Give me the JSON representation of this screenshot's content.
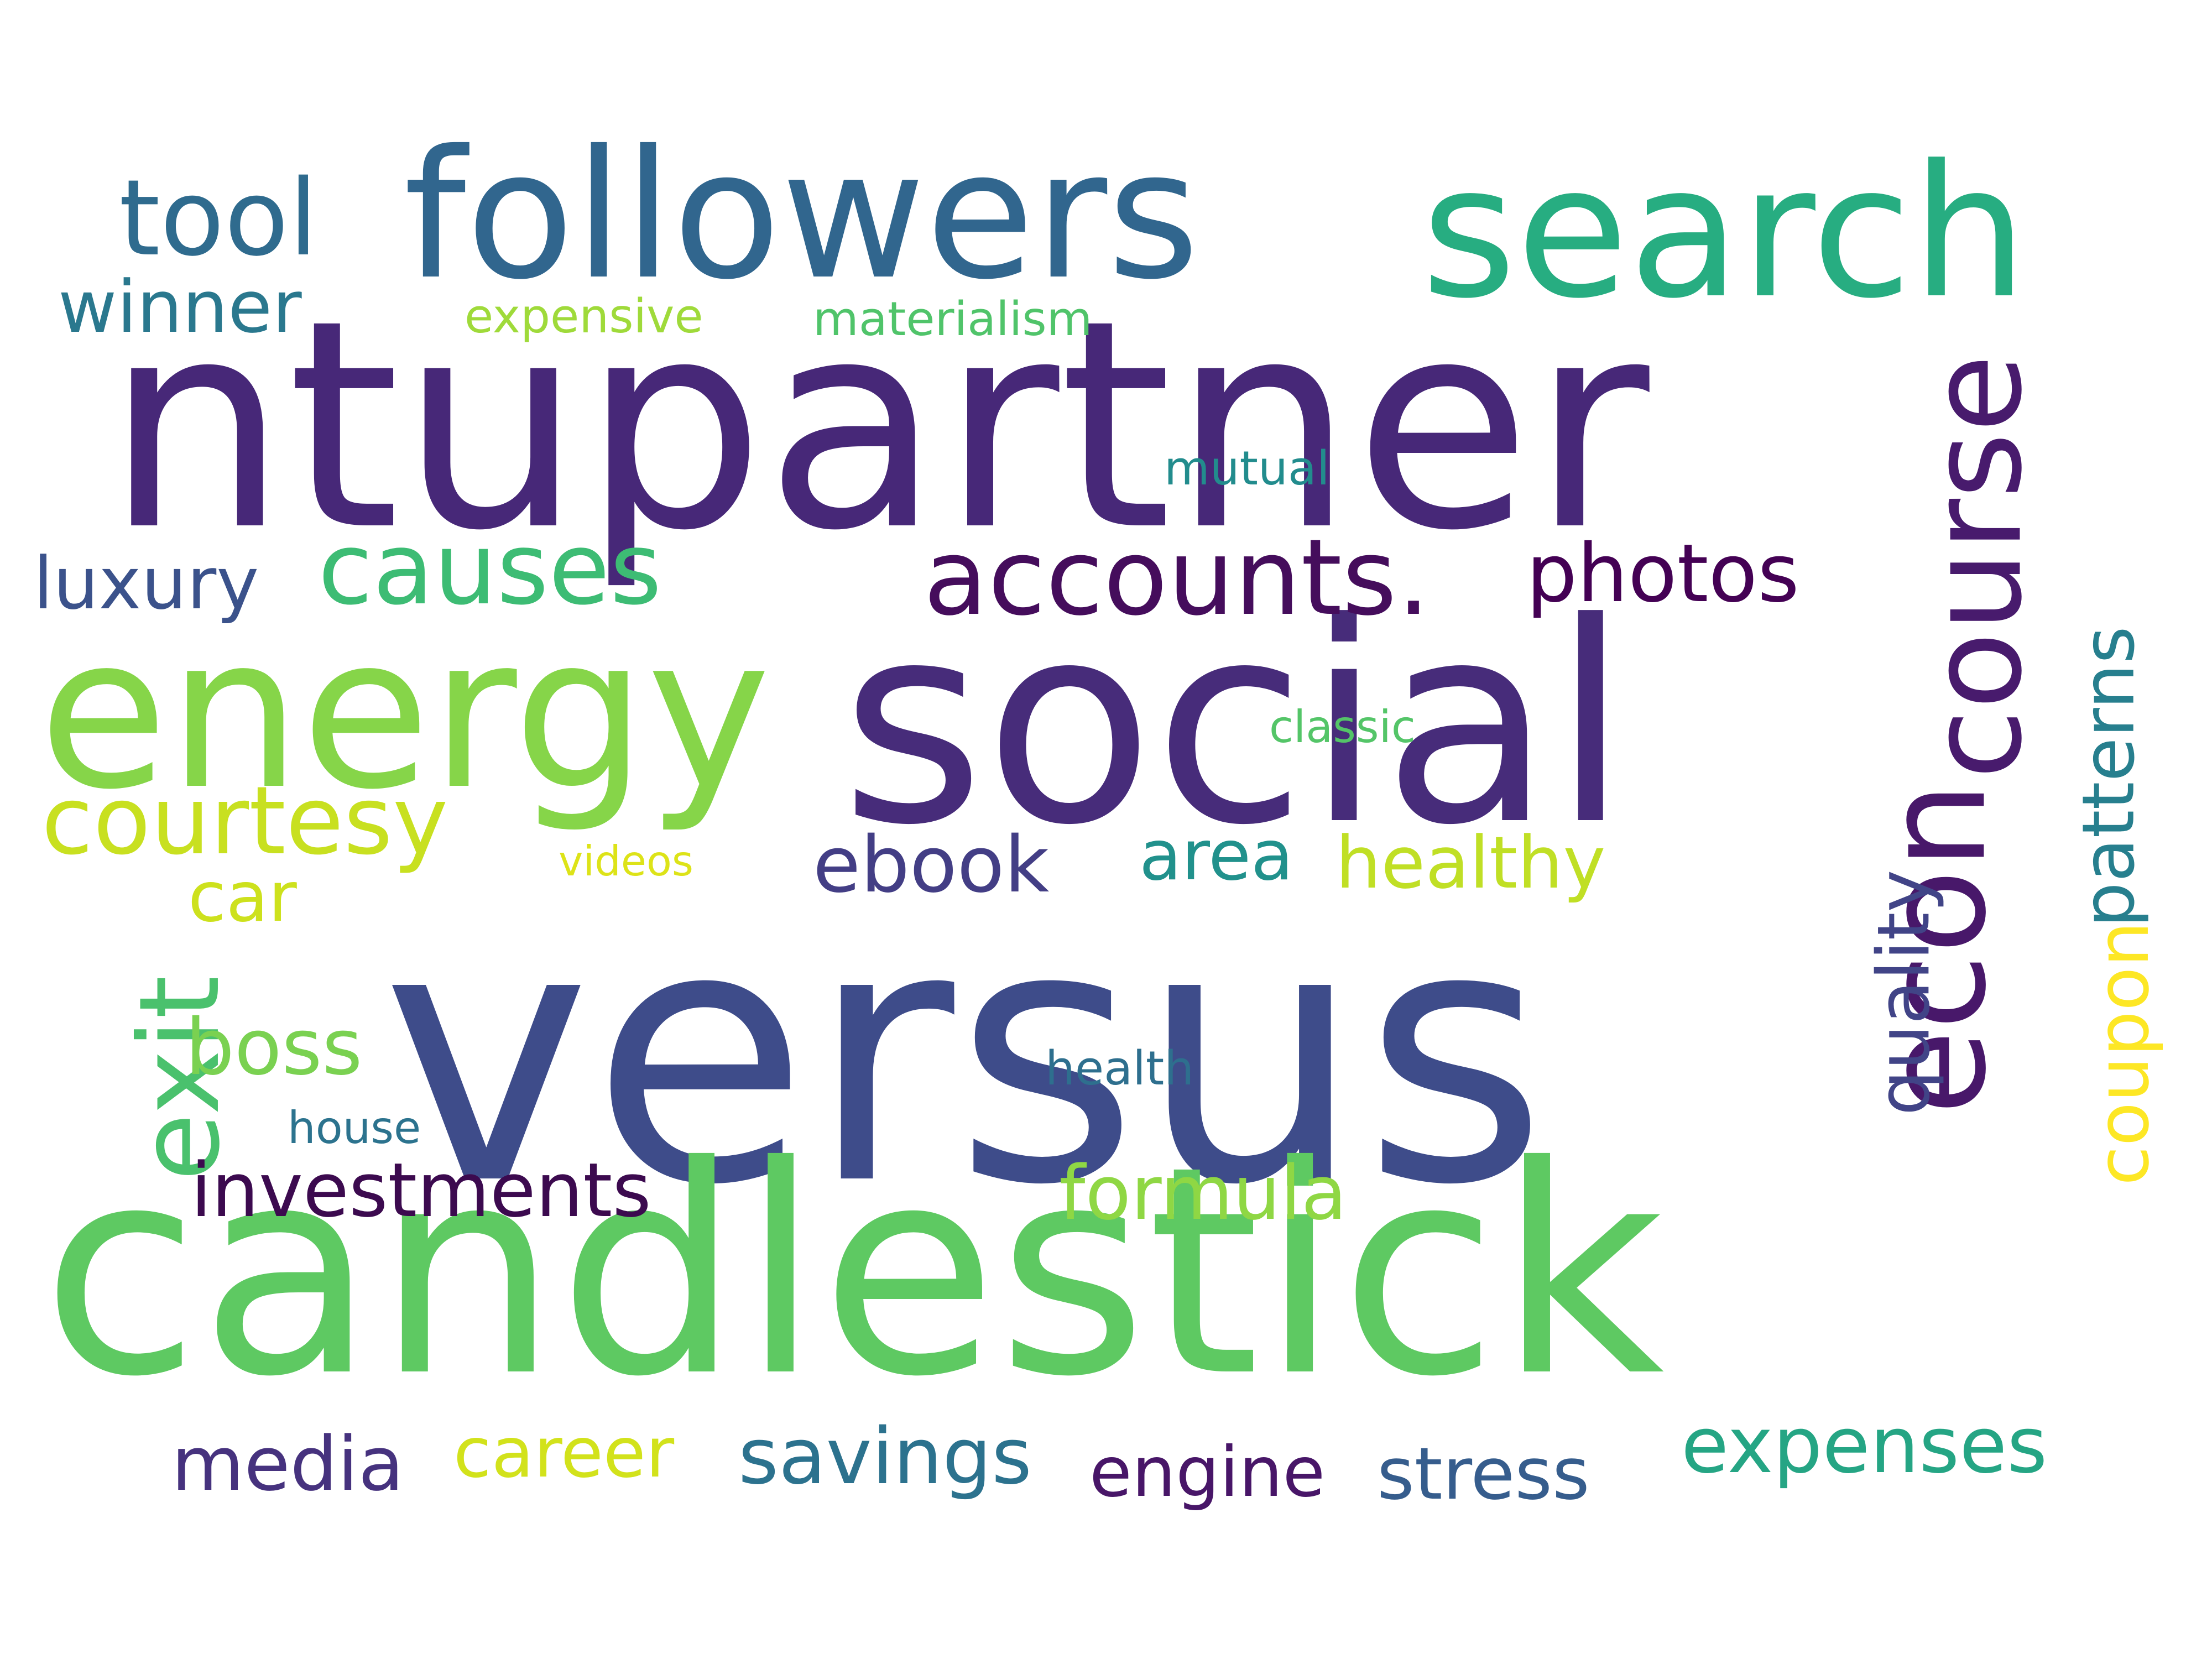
{
  "words": [
    {
      "text": "ntupartner",
      "color": "#472878"
    },
    {
      "text": "versus",
      "color": "#3e4c8a"
    },
    {
      "text": "candlestick",
      "color": "#5ec962"
    },
    {
      "text": "social",
      "color": "#472c7a"
    },
    {
      "text": "followers",
      "color": "#31668e"
    },
    {
      "text": "search",
      "color": "#27ad81"
    },
    {
      "text": "energy",
      "color": "#86d549"
    },
    {
      "text": "econ",
      "color": "#48186a"
    },
    {
      "text": "course",
      "color": "#481b6d"
    },
    {
      "text": "accounts.",
      "color": "#450d5c"
    },
    {
      "text": "tool",
      "color": "#2f6b8e"
    },
    {
      "text": "causes",
      "color": "#3dbc74"
    },
    {
      "text": "courtesy",
      "color": "#c8e020"
    },
    {
      "text": "photos",
      "color": "#440154"
    },
    {
      "text": "winner",
      "color": "#2a788e"
    },
    {
      "text": "luxury",
      "color": "#3b528b"
    },
    {
      "text": "patterns",
      "color": "#277f8e"
    },
    {
      "text": "coupon",
      "color": "#fde725"
    },
    {
      "text": "quality",
      "color": "#414487"
    },
    {
      "text": "exit",
      "color": "#4ac16d"
    },
    {
      "text": "ebook",
      "color": "#433e85"
    },
    {
      "text": "area",
      "color": "#21918c"
    },
    {
      "text": "healthy",
      "color": "#c0df25"
    },
    {
      "text": "car",
      "color": "#cde11d"
    },
    {
      "text": "boss",
      "color": "#7ad151"
    },
    {
      "text": "investments",
      "color": "#3c0a4f"
    },
    {
      "text": "formula",
      "color": "#8fd744"
    },
    {
      "text": "expenses",
      "color": "#25a584"
    },
    {
      "text": "media",
      "color": "#46327e"
    },
    {
      "text": "career",
      "color": "#d2e21b"
    },
    {
      "text": "savings",
      "color": "#2c728e"
    },
    {
      "text": "engine",
      "color": "#481668"
    },
    {
      "text": "stress",
      "color": "#365d8d"
    },
    {
      "text": "expensive",
      "color": "#9fda3a"
    },
    {
      "text": "materialism",
      "color": "#50c46a"
    },
    {
      "text": "mutual",
      "color": "#228c8d"
    },
    {
      "text": "classic",
      "color": "#54c568"
    },
    {
      "text": "videos",
      "color": "#dde318"
    },
    {
      "text": "health",
      "color": "#2e6f8e"
    },
    {
      "text": "house",
      "color": "#2c738e"
    }
  ]
}
